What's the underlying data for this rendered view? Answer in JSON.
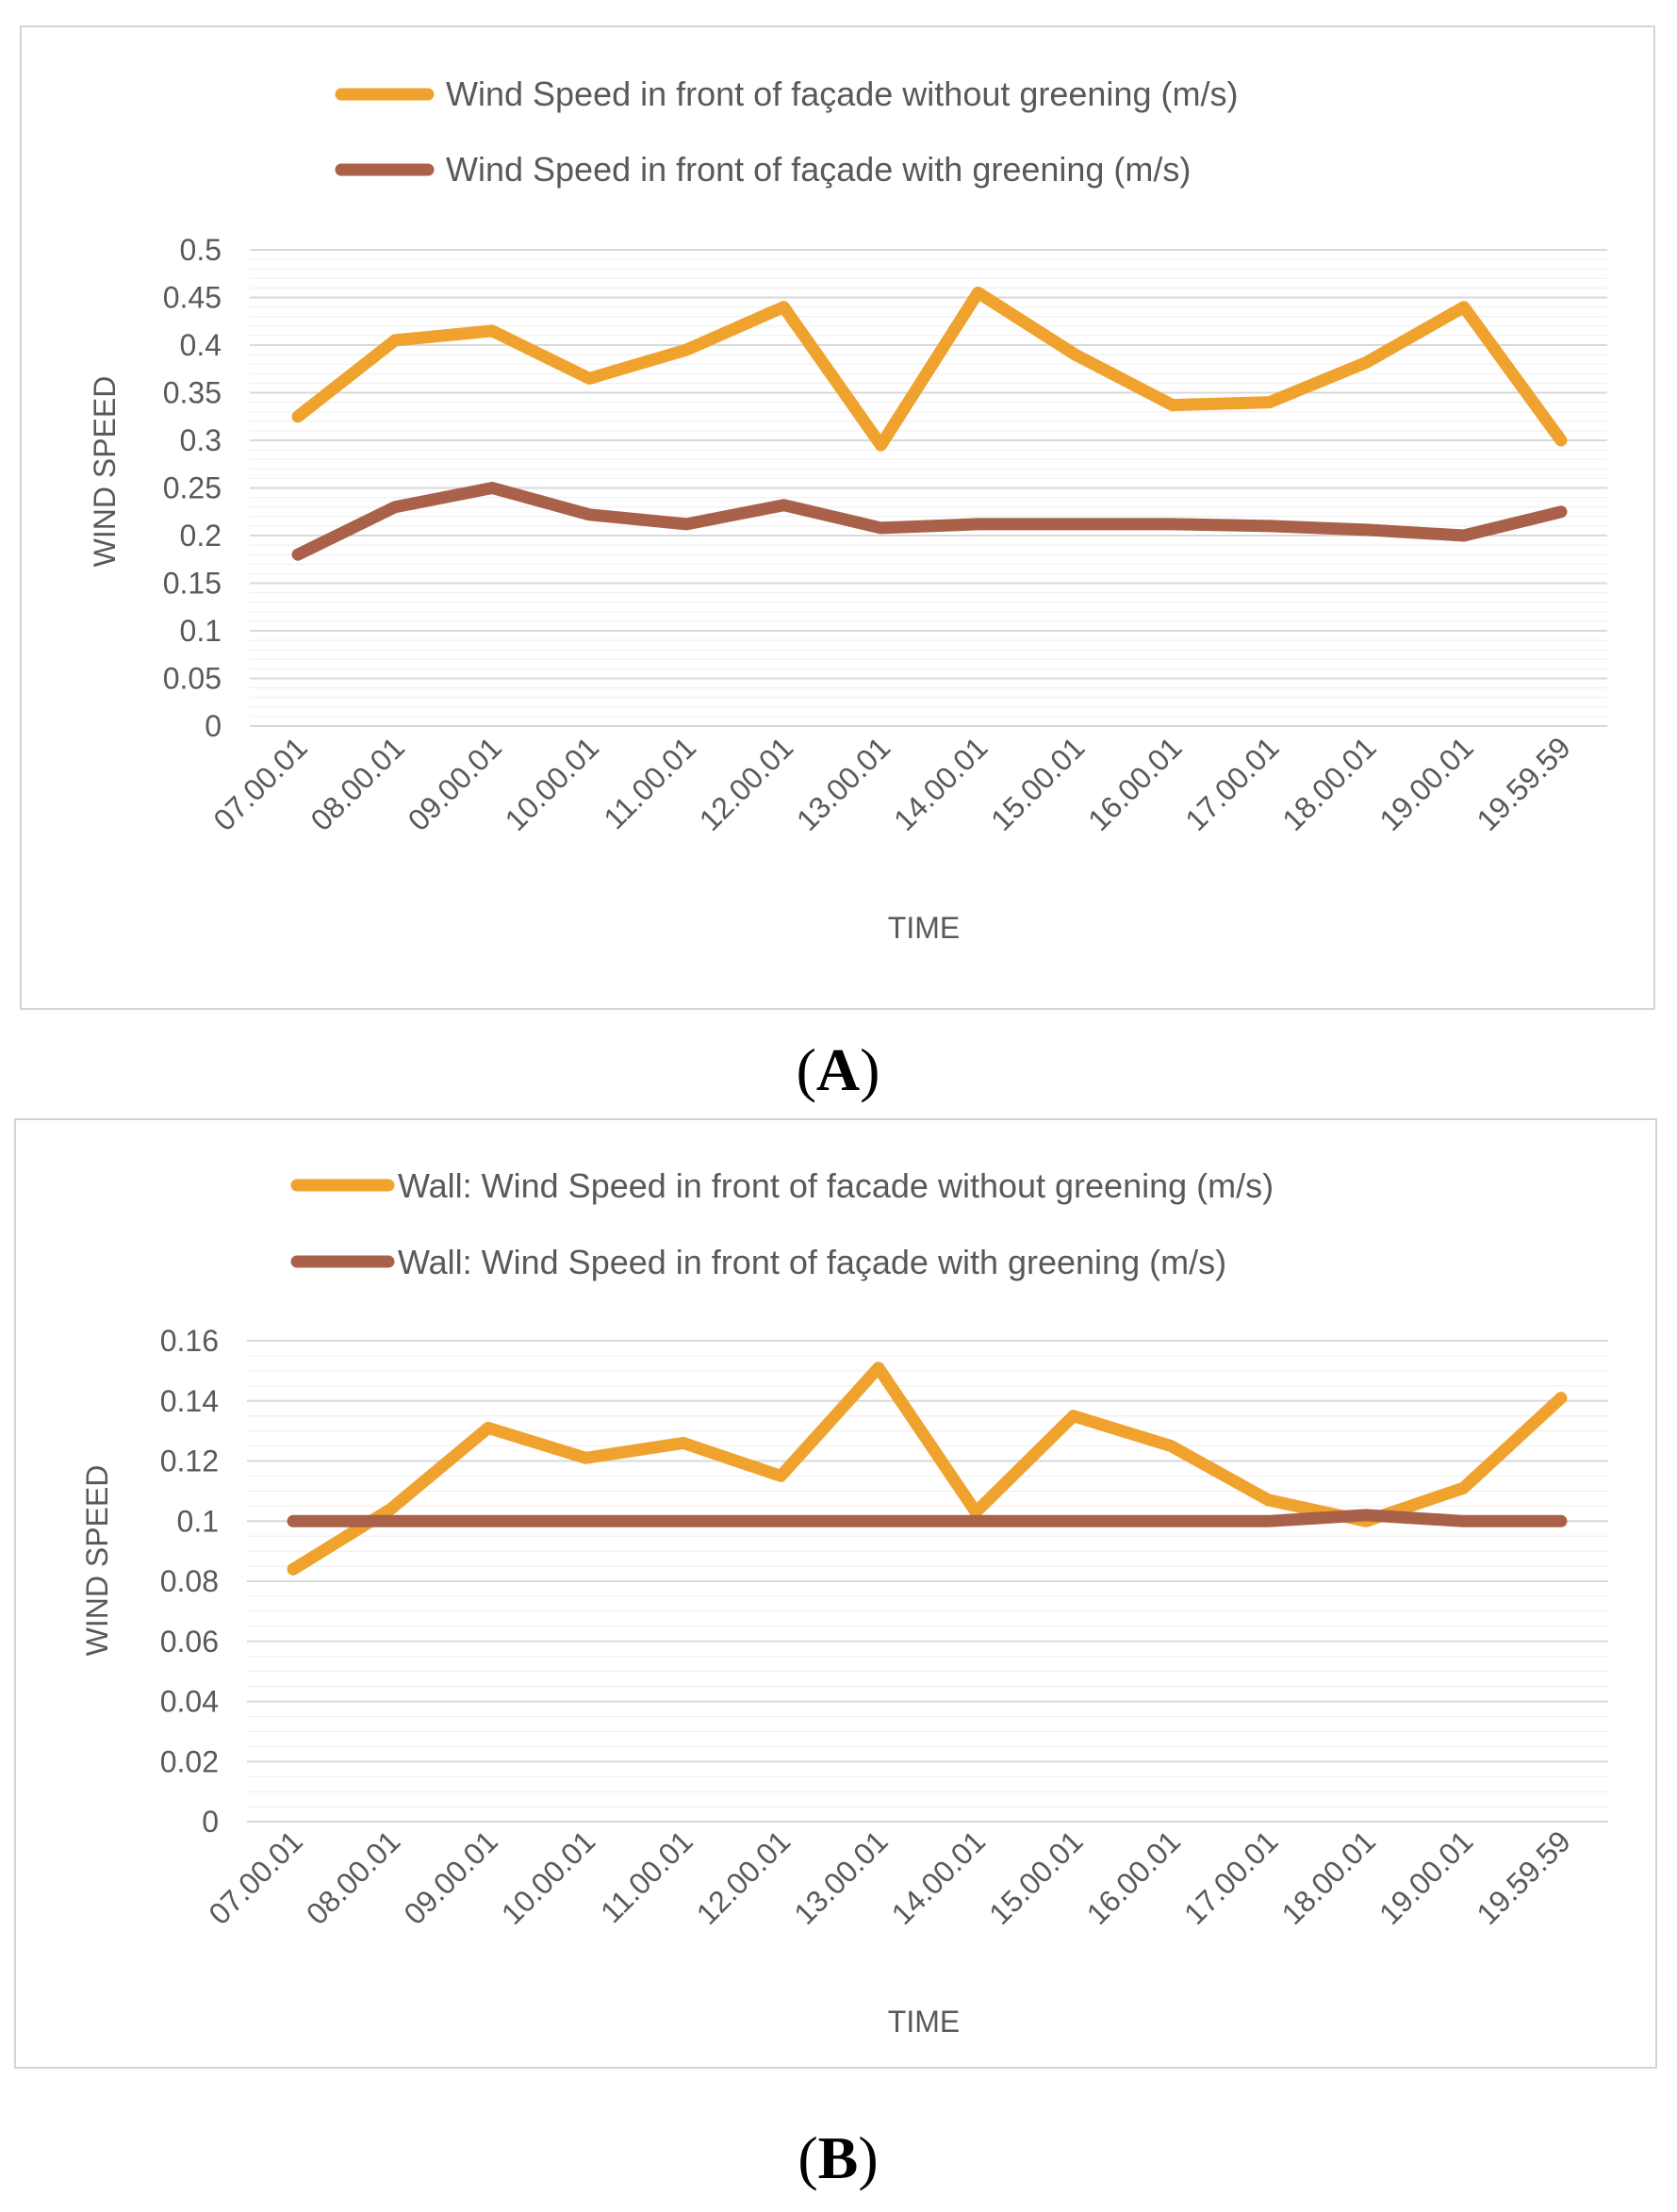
{
  "chart_data": [
    {
      "type": "line",
      "panel_label": "A",
      "xlabel": "TIME",
      "ylabel": "WIND SPEED",
      "ylim": [
        0,
        0.5
      ],
      "yticks": [
        "0",
        "0.05",
        "0.1",
        "0.15",
        "0.2",
        "0.25",
        "0.3",
        "0.35",
        "0.4",
        "0.45",
        "0.5"
      ],
      "categories": [
        "07.00.01",
        "08.00.01",
        "09.00.01",
        "10.00.01",
        "11.00.01",
        "12.00.01",
        "13.00.01",
        "14.00.01",
        "15.00.01",
        "16.00.01",
        "17.00.01",
        "18.00.01",
        "19.00.01",
        "19.59.59"
      ],
      "legend_position": "top",
      "series": [
        {
          "name": "Wind Speed in front of façade without greening  (m/s)",
          "color": "#f0a22e",
          "values": [
            0.325,
            0.405,
            0.415,
            0.365,
            0.395,
            0.44,
            0.295,
            0.455,
            0.39,
            0.337,
            0.34,
            0.382,
            0.44,
            0.3
          ]
        },
        {
          "name": "Wind Speed in front of façade with greening  (m/s)",
          "color": "#a9614a",
          "values": [
            0.18,
            0.23,
            0.25,
            0.222,
            0.212,
            0.232,
            0.208,
            0.212,
            0.212,
            0.212,
            0.21,
            0.206,
            0.2,
            0.225
          ]
        }
      ]
    },
    {
      "type": "line",
      "panel_label": "B",
      "xlabel": "TIME",
      "ylabel": "WIND SPEED",
      "ylim": [
        0,
        0.16
      ],
      "yticks": [
        "0",
        "0.02",
        "0.04",
        "0.06",
        "0.08",
        "0.1",
        "0.12",
        "0.14",
        "0.16"
      ],
      "categories": [
        "07.00.01",
        "08.00.01",
        "09.00.01",
        "10.00.01",
        "11.00.01",
        "12.00.01",
        "13.00.01",
        "14.00.01",
        "15.00.01",
        "16.00.01",
        "17.00.01",
        "18.00.01",
        "19.00.01",
        "19.59.59"
      ],
      "legend_position": "top",
      "series": [
        {
          "name": "Wall: Wind Speed in front of facade without greening (m/s)",
          "color": "#f0a22e",
          "values": [
            0.084,
            0.104,
            0.131,
            0.121,
            0.126,
            0.115,
            0.151,
            0.103,
            0.135,
            0.125,
            0.107,
            0.1,
            0.111,
            0.141
          ]
        },
        {
          "name": "Wall: Wind Speed in front of façade with greening  (m/s)",
          "color": "#a9614a",
          "values": [
            0.1,
            0.1,
            0.1,
            0.1,
            0.1,
            0.1,
            0.1,
            0.1,
            0.1,
            0.1,
            0.1,
            0.102,
            0.1,
            0.1
          ]
        }
      ]
    }
  ]
}
